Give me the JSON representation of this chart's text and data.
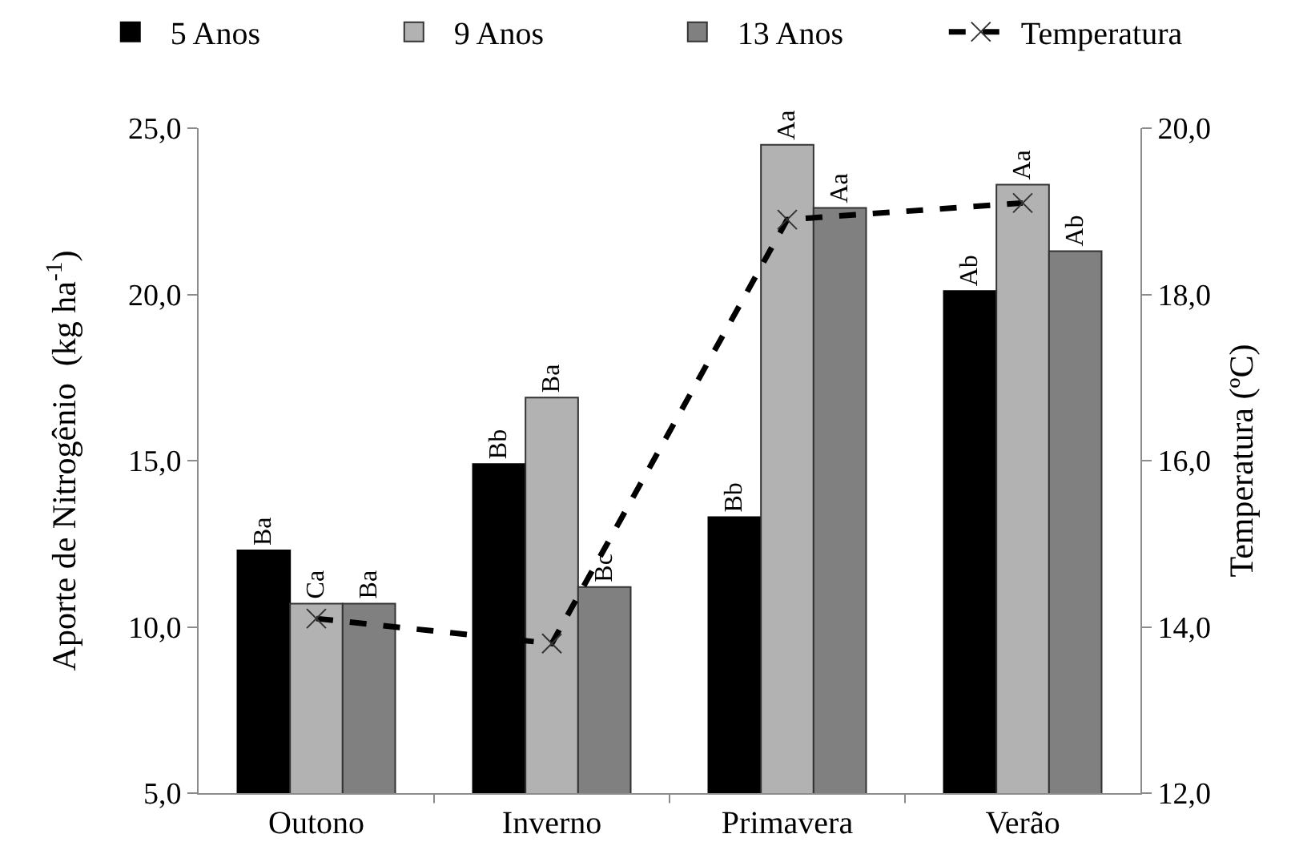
{
  "chart_data": {
    "type": "bar",
    "categories": [
      "Outono",
      "Inverno",
      "Primavera",
      "Verão"
    ],
    "ylabel": "Aporte de Nitrogênio  (kg ha$^{-1}$)",
    "y2label": "Temperatura (ºC)",
    "ylim": [
      5,
      25
    ],
    "yticks": [
      {
        "value": 5,
        "label": "5,0"
      },
      {
        "value": 10,
        "label": "10,0"
      },
      {
        "value": 15,
        "label": "15,0"
      },
      {
        "value": 20,
        "label": "20,0"
      },
      {
        "value": 25,
        "label": "25,0"
      }
    ],
    "y2lim": [
      12,
      20
    ],
    "y2ticks": [
      {
        "value": 12,
        "label": "12,0"
      },
      {
        "value": 14,
        "label": "14,0"
      },
      {
        "value": 16,
        "label": "16,0"
      },
      {
        "value": 18,
        "label": "18,0"
      },
      {
        "value": 20,
        "label": "20,0"
      }
    ],
    "legend": "top",
    "series": [
      {
        "name": "5 Anos",
        "color": "#000000",
        "values": [
          12.3,
          14.9,
          13.3,
          20.1
        ],
        "value_labels": [
          "Ba",
          "Bb",
          "Bb",
          "Ab"
        ]
      },
      {
        "name": "9 Anos",
        "color": "#b2b2b2",
        "values": [
          10.7,
          16.9,
          24.5,
          23.3
        ],
        "value_labels": [
          "Ca",
          "Ba",
          "Aa",
          "Aa"
        ]
      },
      {
        "name": "13 Anos",
        "color": "#808080",
        "values": [
          10.7,
          11.2,
          22.6,
          21.3
        ],
        "value_labels": [
          "Ba",
          "Bc",
          "Aa",
          "Ab"
        ]
      },
      {
        "name": "Temperatura",
        "type": "line",
        "axis": "y2",
        "color": "#000000",
        "values": [
          14.1,
          13.8,
          18.9,
          19.1
        ],
        "marker": "cross",
        "line_style": "dashed"
      }
    ]
  }
}
